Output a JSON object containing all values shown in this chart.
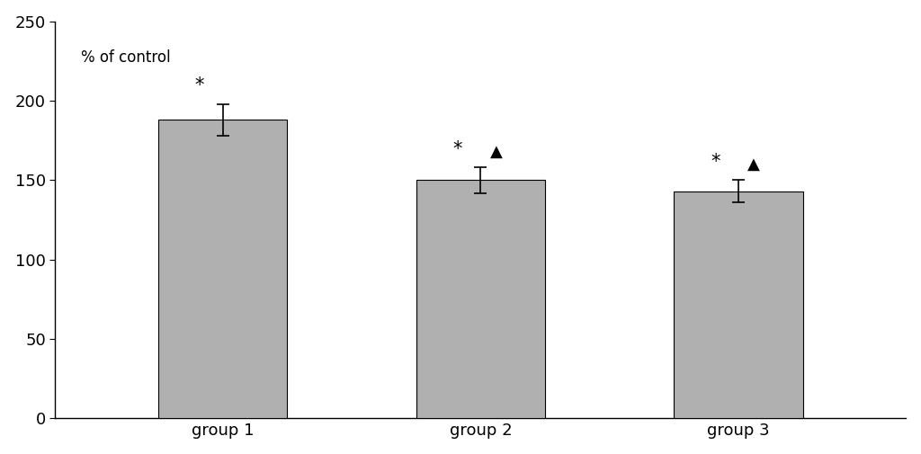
{
  "categories": [
    "group 1",
    "group 2",
    "group 3"
  ],
  "values": [
    188,
    150,
    143
  ],
  "errors": [
    10,
    8,
    7
  ],
  "bar_color": "#b0b0b0",
  "bar_edge_color": "#000000",
  "bar_width": 0.5,
  "ylim": [
    0,
    250
  ],
  "yticks": [
    0,
    50,
    100,
    150,
    200,
    250
  ],
  "ylabel_text": "% of control",
  "background_color": "#ffffff",
  "annotation_star": "*",
  "annotation_triangle": "▲",
  "star_offsets": [
    188,
    150,
    143
  ],
  "star_error": [
    10,
    8,
    7
  ],
  "has_triangle": [
    false,
    true,
    true
  ],
  "figsize": [
    10.24,
    5.05
  ],
  "dpi": 100
}
